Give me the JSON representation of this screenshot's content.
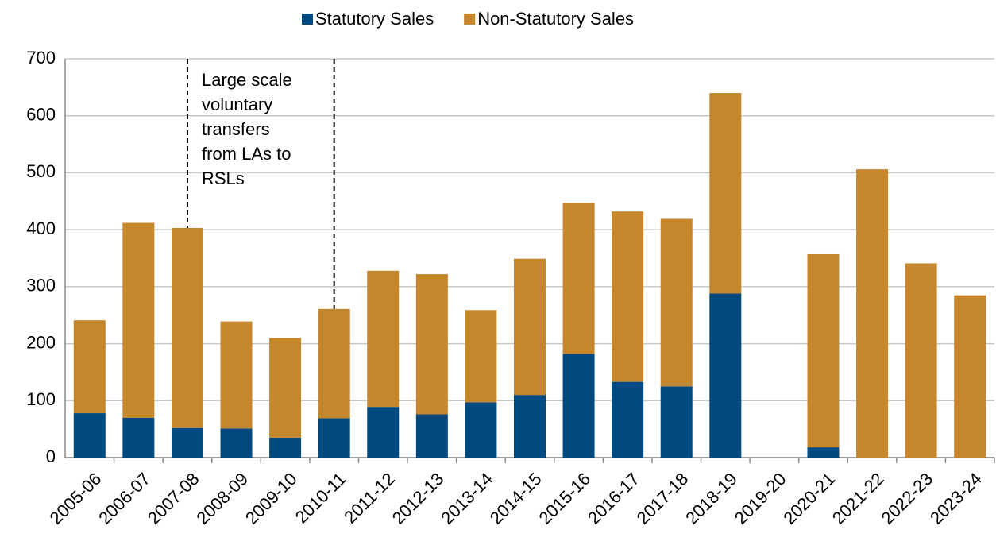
{
  "chart_data": {
    "type": "stacked_bar",
    "categories": [
      "2005-06",
      "2006-07",
      "2007-08",
      "2008-09",
      "2009-10",
      "2010-11",
      "2011-12",
      "2012-13",
      "2013-14",
      "2014-15",
      "2015-16",
      "2016-17",
      "2017-18",
      "2018-19",
      "2019-20",
      "2020-21",
      "2021-22",
      "2022-23",
      "2023-24"
    ],
    "series": [
      {
        "name": "Statutory Sales",
        "color": "#004a7f",
        "values": [
          78,
          70,
          52,
          51,
          35,
          69,
          89,
          76,
          97,
          110,
          182,
          133,
          125,
          288,
          null,
          18,
          0,
          0,
          0
        ]
      },
      {
        "name": "Non-Statutory Sales",
        "color": "#c6862b",
        "values": [
          163,
          342,
          351,
          188,
          175,
          192,
          239,
          246,
          162,
          239,
          265,
          299,
          294,
          352,
          null,
          339,
          506,
          341,
          285
        ]
      }
    ],
    "ylim": [
      0,
      700
    ],
    "yticks": [
      0,
      100,
      200,
      300,
      400,
      500,
      600,
      700
    ],
    "grid": true,
    "legend": "top",
    "annotation": [
      "Large scale",
      "voluntary",
      "transfers",
      "from LAs to",
      "RSLs"
    ]
  }
}
